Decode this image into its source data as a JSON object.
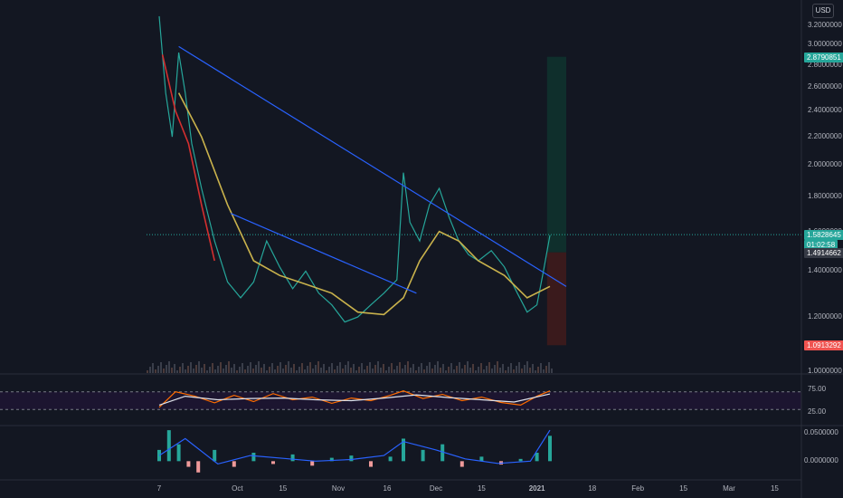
{
  "currency_button": "USD",
  "chart_data": [
    {
      "type": "line",
      "title": "",
      "scale": "log",
      "ylim": [
        1.0,
        3.4
      ],
      "y_ticks": [
        "3.2000000",
        "3.0000000",
        "2.8000000",
        "2.6000000",
        "2.4000000",
        "2.2000000",
        "2.0000000",
        "1.8000000",
        "1.6000000",
        "1.4000000",
        "1.2000000",
        "1.0000000"
      ],
      "x_ticks": [
        "7",
        "Oct",
        "15",
        "Nov",
        "16",
        "Dec",
        "15",
        "2021",
        "18",
        "Feb",
        "15",
        "Mar",
        "15"
      ],
      "grid": false,
      "series": [
        {
          "name": "",
          "role": "price",
          "color": "#26a69a",
          "x": [
            "Sep 7",
            "Sep 9",
            "Sep 11",
            "Sep 13",
            "Sep 15",
            "Sep 17",
            "Sep 20",
            "Sep 24",
            "Sep 28",
            "Oct 2",
            "Oct 6",
            "Oct 10",
            "Oct 14",
            "Oct 18",
            "Oct 22",
            "Oct 26",
            "Oct 30",
            "Nov 3",
            "Nov 7",
            "Nov 11",
            "Nov 15",
            "Nov 19",
            "Nov 21",
            "Nov 23",
            "Nov 26",
            "Nov 29",
            "Dec 2",
            "Dec 5",
            "Dec 8",
            "Dec 11",
            "Dec 14",
            "Dec 18",
            "Dec 22",
            "Dec 26",
            "Dec 29",
            "Jan 1",
            "Jan 3",
            "Jan 5"
          ],
          "y": [
            3.3,
            2.55,
            2.2,
            2.92,
            2.55,
            2.15,
            1.85,
            1.55,
            1.35,
            1.28,
            1.35,
            1.55,
            1.42,
            1.32,
            1.4,
            1.3,
            1.25,
            1.18,
            1.2,
            1.25,
            1.3,
            1.36,
            1.95,
            1.65,
            1.55,
            1.75,
            1.85,
            1.68,
            1.55,
            1.48,
            1.45,
            1.5,
            1.42,
            1.3,
            1.22,
            1.25,
            1.4,
            1.58
          ]
        },
        {
          "name": "",
          "role": "ma-long",
          "color": "#c9b24c",
          "x": [
            "Sep 13",
            "Sep 20",
            "Sep 28",
            "Oct 6",
            "Oct 14",
            "Oct 22",
            "Oct 30",
            "Nov 7",
            "Nov 15",
            "Nov 21",
            "Nov 26",
            "Dec 2",
            "Dec 8",
            "Dec 14",
            "Dec 22",
            "Dec 29",
            "Jan 5"
          ],
          "y": [
            2.55,
            2.2,
            1.75,
            1.45,
            1.38,
            1.34,
            1.3,
            1.22,
            1.21,
            1.28,
            1.45,
            1.6,
            1.55,
            1.45,
            1.38,
            1.28,
            1.33
          ]
        },
        {
          "name": "",
          "role": "ma-short",
          "color": "#d32f2f",
          "x": [
            "Sep 8",
            "Sep 12",
            "Sep 16",
            "Sep 20",
            "Sep 24"
          ],
          "y": [
            2.9,
            2.4,
            2.15,
            1.75,
            1.45
          ]
        }
      ],
      "trendlines": [
        {
          "color": "#2962ff",
          "x": [
            "Sep 13",
            "Jan 10"
          ],
          "y": [
            2.98,
            1.33
          ]
        },
        {
          "color": "#2962ff",
          "x": [
            "Sep 29",
            "Nov 25"
          ],
          "y": [
            1.7,
            1.3
          ]
        }
      ],
      "position_tool": {
        "entry": 1.4914662,
        "target": 2.8790851,
        "stop": 1.0913292,
        "start": "Jan 3",
        "end": "Jan 10"
      },
      "price_tags": [
        {
          "value": "2.8790851",
          "color": "#26a69a"
        },
        {
          "value": "1.5828645",
          "color": "#26a69a"
        },
        {
          "value": "01:02:58",
          "color": "#26a69a"
        },
        {
          "value": "1.4914662",
          "color": "#363a45"
        },
        {
          "value": "1.0913292",
          "color": "#ef5350"
        }
      ]
    },
    {
      "type": "line",
      "title": "",
      "ylim": [
        0,
        100
      ],
      "y_ticks": [
        "75.00",
        "25.00"
      ],
      "levels": [
        70,
        30
      ],
      "series": [
        {
          "name": "",
          "role": "oscillator",
          "color": "#ff6d00",
          "x": [
            "Sep 7",
            "Sep 12",
            "Sep 18",
            "Sep 24",
            "Sep 30",
            "Oct 6",
            "Oct 12",
            "Oct 18",
            "Oct 24",
            "Oct 30",
            "Nov 5",
            "Nov 11",
            "Nov 17",
            "Nov 21",
            "Nov 27",
            "Dec 3",
            "Dec 9",
            "Dec 15",
            "Dec 21",
            "Dec 27",
            "Jan 1",
            "Jan 5"
          ],
          "y": [
            35,
            70,
            60,
            45,
            62,
            48,
            66,
            52,
            58,
            44,
            56,
            50,
            62,
            72,
            55,
            64,
            50,
            58,
            46,
            40,
            60,
            72
          ]
        },
        {
          "name": "",
          "role": "signal",
          "color": "#e0e3eb",
          "x": [
            "Sep 7",
            "Sep 15",
            "Sep 25",
            "Oct 5",
            "Oct 15",
            "Oct 25",
            "Nov 5",
            "Nov 15",
            "Nov 25",
            "Dec 5",
            "Dec 15",
            "Dec 25",
            "Jan 5"
          ],
          "y": [
            40,
            60,
            52,
            55,
            56,
            52,
            50,
            56,
            63,
            57,
            52,
            47,
            65
          ]
        }
      ]
    },
    {
      "type": "bar",
      "title": "",
      "ylim": [
        -0.03,
        0.06
      ],
      "y_ticks": [
        "0.0500000",
        "0.0000000"
      ],
      "series": [
        {
          "name": "",
          "role": "histogram",
          "color": "#26a69a",
          "x": [
            "Sep 7",
            "Sep 10",
            "Sep 13",
            "Sep 16",
            "Sep 19",
            "Sep 24",
            "Sep 30",
            "Oct 6",
            "Oct 12",
            "Oct 18",
            "Oct 24",
            "Oct 30",
            "Nov 5",
            "Nov 11",
            "Nov 17",
            "Nov 21",
            "Nov 27",
            "Dec 3",
            "Dec 9",
            "Dec 15",
            "Dec 21",
            "Dec 27",
            "Jan 1",
            "Jan 5"
          ],
          "y": [
            0.02,
            0.055,
            0.03,
            -0.01,
            -0.02,
            0.02,
            -0.01,
            0.015,
            -0.005,
            0.012,
            -0.008,
            0.006,
            0.01,
            -0.01,
            0.008,
            0.04,
            0.02,
            0.03,
            -0.01,
            0.008,
            -0.006,
            0.004,
            0.015,
            0.045
          ]
        },
        {
          "name": "",
          "role": "macd",
          "color": "#2962ff",
          "x": [
            "Sep 7",
            "Sep 15",
            "Sep 25",
            "Oct 5",
            "Oct 15",
            "Oct 25",
            "Nov 5",
            "Nov 15",
            "Nov 21",
            "Dec 1",
            "Dec 10",
            "Dec 20",
            "Dec 30",
            "Jan 5"
          ],
          "y": [
            0.01,
            0.04,
            -0.005,
            0.01,
            0.005,
            0.0,
            0.003,
            0.01,
            0.035,
            0.02,
            0.004,
            -0.004,
            0.0,
            0.055
          ]
        }
      ]
    }
  ]
}
